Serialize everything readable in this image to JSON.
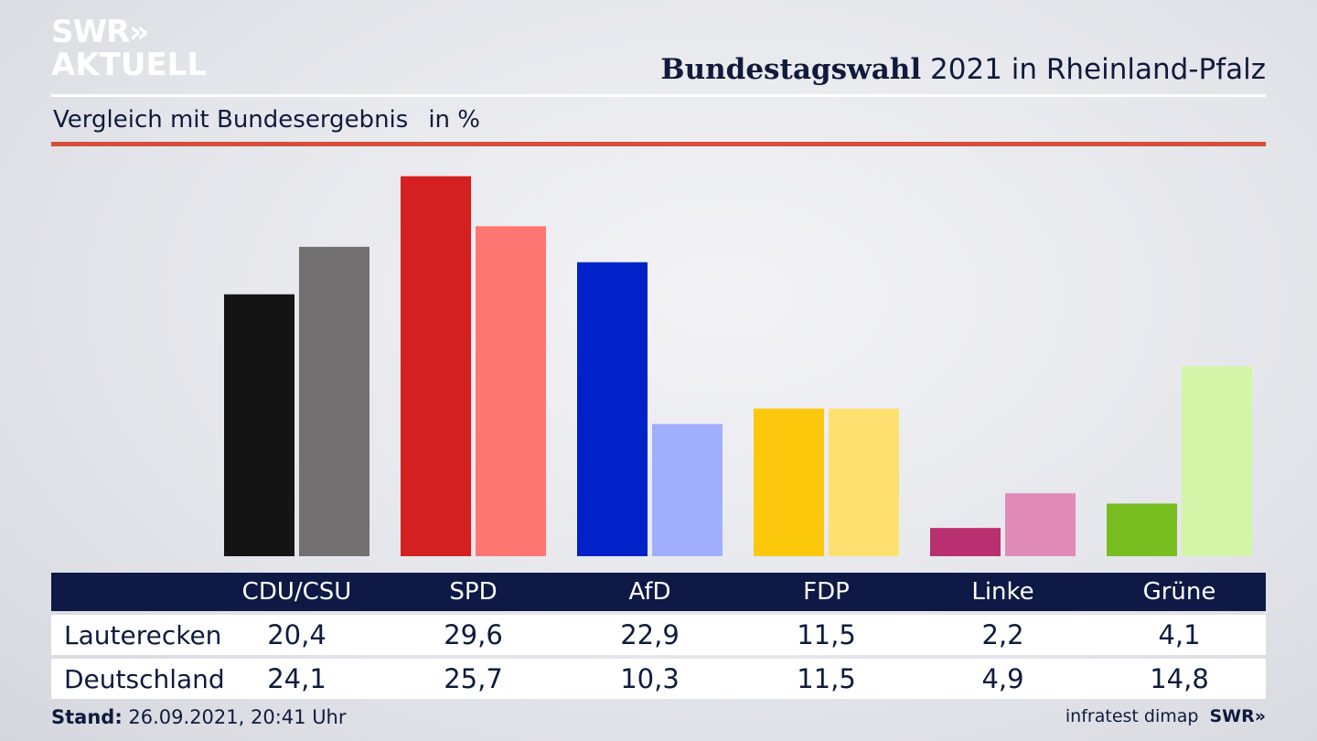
{
  "brand": {
    "line1": "SWR",
    "line1_mark": "»",
    "line2": "AKTUELL"
  },
  "header": {
    "title_bold": "Bundestagswahl",
    "title_rest": "2021 in Rheinland-Pfalz"
  },
  "subtitle": {
    "text": "Vergleich mit Bundesergebnis",
    "unit": "in %"
  },
  "chart_data": {
    "type": "bar",
    "categories": [
      "CDU/CSU",
      "SPD",
      "AfD",
      "FDP",
      "Linke",
      "Grüne"
    ],
    "series": [
      {
        "name": "Lauterecken",
        "values": [
          20.4,
          29.6,
          22.9,
          11.5,
          2.2,
          4.1
        ]
      },
      {
        "name": "Deutschland",
        "values": [
          24.1,
          25.7,
          10.3,
          11.5,
          4.9,
          14.8
        ]
      }
    ],
    "colors": {
      "Lauterecken": [
        "#141414",
        "#d42020",
        "#0022c8",
        "#fcc80c",
        "#b83070",
        "#78be20"
      ],
      "Deutschland": [
        "#727070",
        "#fe7672",
        "#a0aefe",
        "#fee070",
        "#e08ab8",
        "#d4f4a8"
      ]
    },
    "ylim": [
      0,
      30
    ]
  },
  "footer": {
    "stand_label": "Stand:",
    "stand_value": "26.09.2021, 20:41 Uhr",
    "source": "infratest dimap",
    "brand": "SWR»"
  }
}
